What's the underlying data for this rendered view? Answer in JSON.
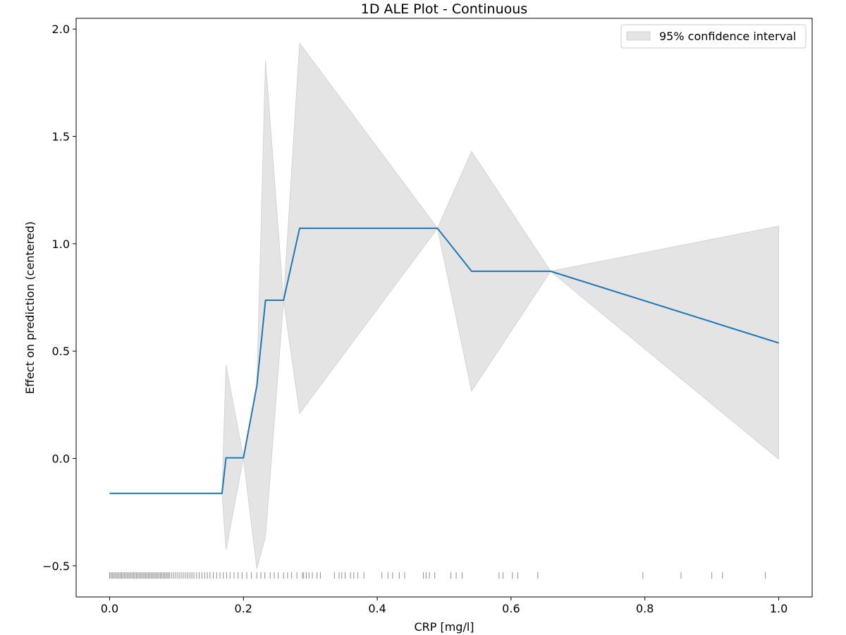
{
  "chart_data": {
    "type": "line",
    "title": "1D ALE Plot - Continuous",
    "xlabel": "CRP [mg/l]",
    "ylabel": "Effect on prediction (centered)",
    "xlim": [
      -0.05,
      1.05
    ],
    "ylim": [
      -0.645,
      2.05
    ],
    "xticks": [
      0.0,
      0.2,
      0.4,
      0.6,
      0.8,
      1.0
    ],
    "xtick_labels": [
      "0.0",
      "0.2",
      "0.4",
      "0.6",
      "0.8",
      "1.0"
    ],
    "yticks": [
      -0.5,
      0.0,
      0.5,
      1.0,
      1.5,
      2.0
    ],
    "ytick_labels": [
      "−0.5",
      "0.0",
      "0.5",
      "1.0",
      "1.5",
      "2.0"
    ],
    "grid": false,
    "legend": {
      "position": "top-right",
      "entries": [
        "95% confidence interval"
      ]
    },
    "series": [
      {
        "kind": "line",
        "color": "#1f77b4",
        "x": [
          0.0,
          0.168,
          0.174,
          0.2,
          0.22,
          0.233,
          0.26,
          0.284,
          0.49,
          0.541,
          0.659,
          1.0
        ],
        "y": [
          -0.163,
          -0.163,
          0.003,
          0.003,
          0.337,
          0.737,
          0.737,
          1.072,
          1.072,
          0.872,
          0.872,
          0.538
        ]
      },
      {
        "kind": "band",
        "name": "95% confidence interval",
        "color": "#e4e4e4",
        "x": [
          0.0,
          0.168,
          0.174,
          0.2,
          0.22,
          0.233,
          0.26,
          0.284,
          0.49,
          0.541,
          0.659,
          1.0
        ],
        "upper": [
          -0.163,
          -0.163,
          0.435,
          0.003,
          0.337,
          1.853,
          0.737,
          1.934,
          1.072,
          1.43,
          0.872,
          1.082
        ],
        "lower": [
          -0.163,
          -0.163,
          -0.425,
          0.003,
          -0.513,
          -0.365,
          0.737,
          0.21,
          1.072,
          0.314,
          0.872,
          -0.003
        ]
      }
    ],
    "rug": {
      "y": -0.545,
      "color": "#000000",
      "x": [
        0.0,
        0.002,
        0.004,
        0.006,
        0.008,
        0.01,
        0.012,
        0.014,
        0.016,
        0.018,
        0.02,
        0.022,
        0.024,
        0.026,
        0.028,
        0.03,
        0.032,
        0.034,
        0.036,
        0.038,
        0.04,
        0.042,
        0.044,
        0.046,
        0.048,
        0.05,
        0.052,
        0.054,
        0.056,
        0.058,
        0.06,
        0.062,
        0.064,
        0.066,
        0.068,
        0.07,
        0.072,
        0.074,
        0.076,
        0.078,
        0.08,
        0.082,
        0.084,
        0.086,
        0.088,
        0.09,
        0.093,
        0.096,
        0.099,
        0.102,
        0.105,
        0.108,
        0.111,
        0.114,
        0.117,
        0.12,
        0.123,
        0.126,
        0.13,
        0.134,
        0.138,
        0.142,
        0.146,
        0.15,
        0.155,
        0.16,
        0.165,
        0.17,
        0.175,
        0.18,
        0.186,
        0.192,
        0.198,
        0.205,
        0.212,
        0.22,
        0.226,
        0.232,
        0.24,
        0.246,
        0.252,
        0.26,
        0.266,
        0.272,
        0.28,
        0.288,
        0.29,
        0.294,
        0.298,
        0.303,
        0.31,
        0.315,
        0.336,
        0.343,
        0.347,
        0.352,
        0.36,
        0.365,
        0.371,
        0.38,
        0.407,
        0.416,
        0.423,
        0.433,
        0.441,
        0.469,
        0.473,
        0.478,
        0.486,
        0.51,
        0.518,
        0.527,
        0.582,
        0.588,
        0.602,
        0.61,
        0.64,
        0.797,
        0.854,
        0.9,
        0.916,
        0.98
      ]
    }
  }
}
